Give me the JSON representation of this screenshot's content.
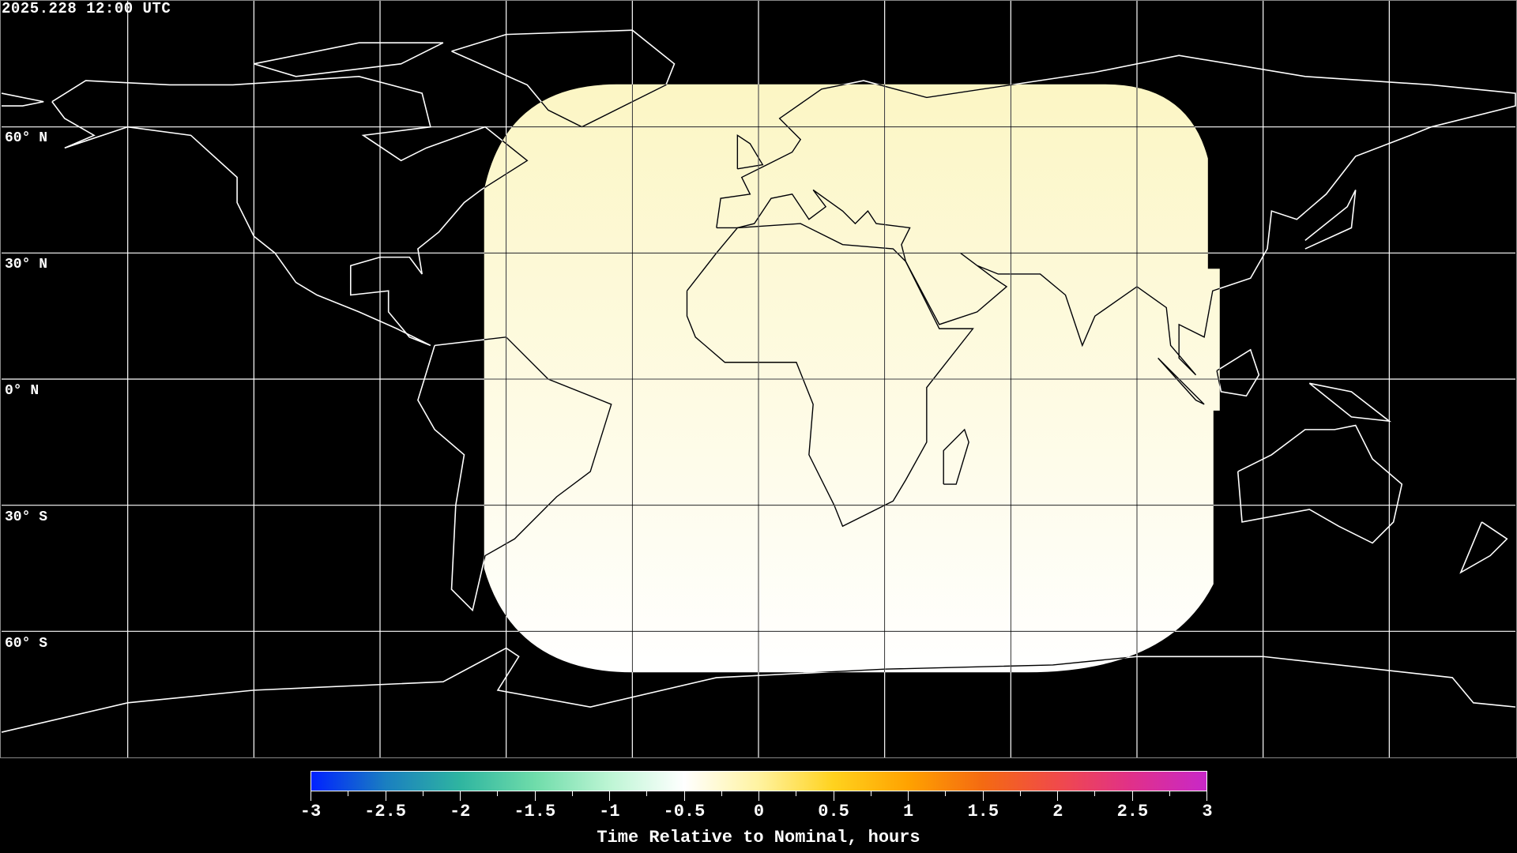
{
  "title": "2025.228 12:00 UTC",
  "map": {
    "projection": "equirectangular",
    "gridlines": {
      "lon_step": 30,
      "lat_step": 30
    },
    "lat_labels": [
      {
        "lat": 60,
        "label": "60° N"
      },
      {
        "lat": 30,
        "label": "30° N"
      },
      {
        "lat": 0,
        "label": "0° N"
      },
      {
        "lat": -30,
        "label": "30° S"
      },
      {
        "lat": -60,
        "label": "60° S"
      }
    ],
    "coverage_colors": {
      "top": "#fcf6c4",
      "bottom": "#ffffff"
    },
    "coastline_color_outside": "#ffffff",
    "coastline_color_inside": "#000000"
  },
  "colorbar": {
    "label": "Time Relative to Nominal, hours",
    "range": [
      -3,
      3
    ],
    "ticks": [
      "-3",
      "-2.5",
      "-2",
      "-1.5",
      "-1",
      "-0.5",
      "0",
      "0.5",
      "1",
      "1.5",
      "2",
      "2.5",
      "3"
    ],
    "colors": [
      "#0022ff",
      "#1a7fc0",
      "#2fb5a0",
      "#6fdcaa",
      "#bdf5d4",
      "#ffffff",
      "#fff3a0",
      "#ffd21e",
      "#ffa200",
      "#f46a12",
      "#f04a4a",
      "#e0308a",
      "#c828c8"
    ]
  }
}
